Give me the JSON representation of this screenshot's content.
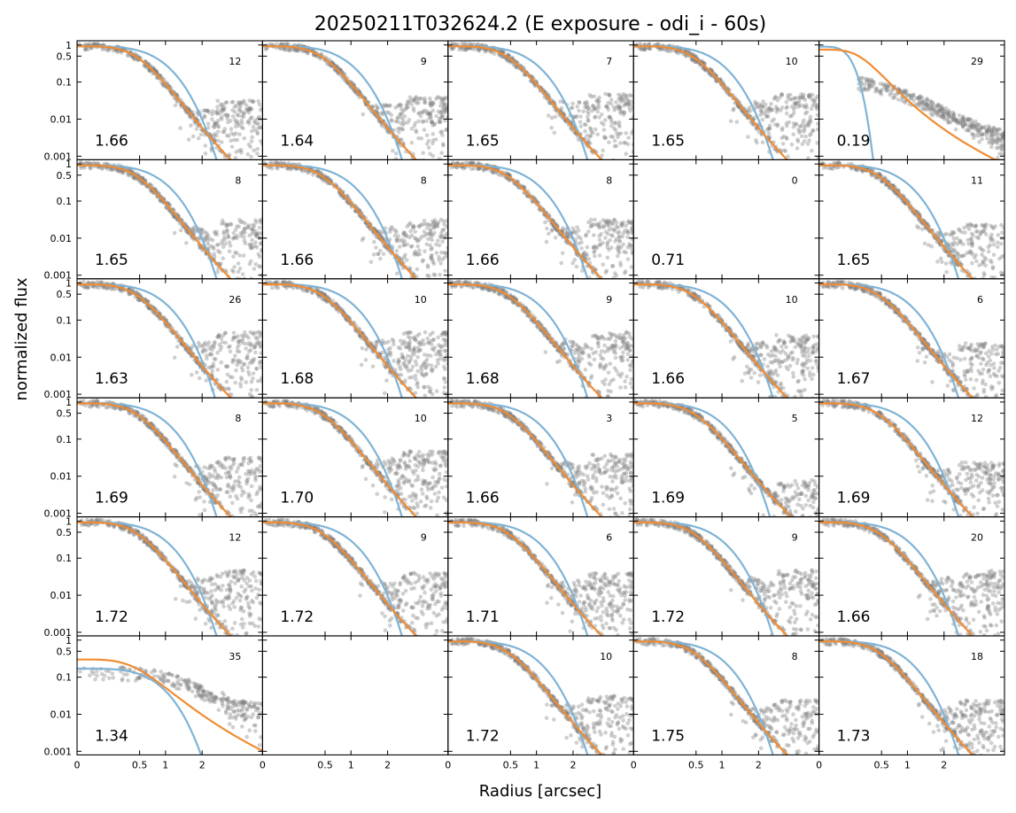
{
  "figure": {
    "title": "20250211T032624.2 (E exposure - odi_i - 60s)",
    "xlabel": "Radius [arcsec]",
    "ylabel": "normalized flux"
  },
  "chart_data": {
    "type": "scatter",
    "layout": "6 rows x 5 columns grid of panels",
    "title": "20250211T032624.2 (E exposure - odi_i - 60s)",
    "xlabel": "Radius [arcsec]",
    "ylabel": "normalized flux",
    "x_scale": "sqrt",
    "x_ticks": [
      0,
      0.5,
      1,
      2
    ],
    "x_tick_labels": [
      "0",
      "0.5",
      "1",
      "2"
    ],
    "xlim": [
      0,
      4.4
    ],
    "y_scale": "log",
    "y_ticks": [
      1,
      0.5,
      0.1,
      0.01,
      0.001
    ],
    "y_tick_labels": [
      "1",
      "0.5",
      "0.1",
      "0.01",
      "0.001"
    ],
    "ylim": [
      0.0008,
      1.3
    ],
    "colors": {
      "points": "#808080",
      "gaussian_fit": "#7fb3d5",
      "moffat_fit": "#f08c33"
    },
    "panels": [
      {
        "fwhm": "1.66",
        "count": "12",
        "scatter_kind": "normal",
        "gauss_scale": 0.92,
        "moffat_scale": 1.0,
        "floor": 0.02
      },
      {
        "fwhm": "1.64",
        "count": "9",
        "scatter_kind": "normal",
        "gauss_scale": 0.92,
        "moffat_scale": 1.0,
        "floor": 0.025
      },
      {
        "fwhm": "1.65",
        "count": "7",
        "scatter_kind": "normal",
        "gauss_scale": 0.92,
        "moffat_scale": 1.0,
        "floor": 0.03
      },
      {
        "fwhm": "1.65",
        "count": "10",
        "scatter_kind": "normal",
        "gauss_scale": 0.92,
        "moffat_scale": 1.0,
        "floor": 0.03
      },
      {
        "fwhm": "0.19",
        "count": "29",
        "scatter_kind": "bad",
        "gauss_scale": 1.0,
        "moffat_scale": 1.0,
        "floor": 0.01
      },
      {
        "fwhm": "1.65",
        "count": "8",
        "scatter_kind": "normal",
        "gauss_scale": 0.92,
        "moffat_scale": 1.0,
        "floor": 0.02
      },
      {
        "fwhm": "1.66",
        "count": "8",
        "scatter_kind": "normal",
        "gauss_scale": 0.92,
        "moffat_scale": 1.0,
        "floor": 0.02
      },
      {
        "fwhm": "1.66",
        "count": "8",
        "scatter_kind": "normal",
        "gauss_scale": 0.92,
        "moffat_scale": 1.0,
        "floor": 0.02
      },
      {
        "fwhm": "0.71",
        "count": "0",
        "scatter_kind": "empty",
        "gauss_scale": 1.0,
        "moffat_scale": 1.0,
        "floor": 0.0
      },
      {
        "fwhm": "1.65",
        "count": "11",
        "scatter_kind": "normal",
        "gauss_scale": 0.92,
        "moffat_scale": 1.0,
        "floor": 0.015
      },
      {
        "fwhm": "1.63",
        "count": "26",
        "scatter_kind": "normal",
        "gauss_scale": 0.9,
        "moffat_scale": 1.0,
        "floor": 0.03
      },
      {
        "fwhm": "1.68",
        "count": "10",
        "scatter_kind": "normal",
        "gauss_scale": 0.92,
        "moffat_scale": 1.0,
        "floor": 0.03
      },
      {
        "fwhm": "1.68",
        "count": "9",
        "scatter_kind": "normal",
        "gauss_scale": 0.92,
        "moffat_scale": 1.0,
        "floor": 0.03
      },
      {
        "fwhm": "1.66",
        "count": "10",
        "scatter_kind": "normal",
        "gauss_scale": 0.92,
        "moffat_scale": 1.0,
        "floor": 0.025
      },
      {
        "fwhm": "1.67",
        "count": "6",
        "scatter_kind": "normal",
        "gauss_scale": 0.92,
        "moffat_scale": 1.0,
        "floor": 0.015
      },
      {
        "fwhm": "1.69",
        "count": "8",
        "scatter_kind": "normal",
        "gauss_scale": 0.92,
        "moffat_scale": 1.0,
        "floor": 0.02
      },
      {
        "fwhm": "1.70",
        "count": "10",
        "scatter_kind": "normal",
        "gauss_scale": 0.92,
        "moffat_scale": 1.0,
        "floor": 0.03
      },
      {
        "fwhm": "1.66",
        "count": "3",
        "scatter_kind": "normal",
        "gauss_scale": 0.92,
        "moffat_scale": 1.0,
        "floor": 0.025
      },
      {
        "fwhm": "1.69",
        "count": "5",
        "scatter_kind": "normal",
        "gauss_scale": 0.88,
        "moffat_scale": 1.05,
        "floor": 0.005
      },
      {
        "fwhm": "1.69",
        "count": "12",
        "scatter_kind": "normal",
        "gauss_scale": 0.92,
        "moffat_scale": 1.0,
        "floor": 0.015
      },
      {
        "fwhm": "1.72",
        "count": "12",
        "scatter_kind": "normal",
        "gauss_scale": 0.92,
        "moffat_scale": 1.0,
        "floor": 0.03
      },
      {
        "fwhm": "1.72",
        "count": "9",
        "scatter_kind": "normal",
        "gauss_scale": 0.92,
        "moffat_scale": 1.0,
        "floor": 0.025
      },
      {
        "fwhm": "1.71",
        "count": "6",
        "scatter_kind": "normal",
        "gauss_scale": 0.92,
        "moffat_scale": 1.0,
        "floor": 0.025
      },
      {
        "fwhm": "1.72",
        "count": "9",
        "scatter_kind": "normal",
        "gauss_scale": 0.92,
        "moffat_scale": 1.0,
        "floor": 0.03
      },
      {
        "fwhm": "1.66",
        "count": "20",
        "scatter_kind": "normal",
        "gauss_scale": 0.92,
        "moffat_scale": 1.0,
        "floor": 0.03
      },
      {
        "fwhm": "1.34",
        "count": "35",
        "scatter_kind": "faint",
        "gauss_scale": 1.0,
        "moffat_scale": 1.0,
        "floor": 0.02
      },
      {
        "fwhm": "",
        "count": "",
        "scatter_kind": "none",
        "gauss_scale": 1.0,
        "moffat_scale": 1.0,
        "floor": 0.0
      },
      {
        "fwhm": "1.72",
        "count": "10",
        "scatter_kind": "normal",
        "gauss_scale": 0.92,
        "moffat_scale": 1.0,
        "floor": 0.02
      },
      {
        "fwhm": "1.75",
        "count": "8",
        "scatter_kind": "normal",
        "gauss_scale": 0.92,
        "moffat_scale": 1.0,
        "floor": 0.015
      },
      {
        "fwhm": "1.73",
        "count": "18",
        "scatter_kind": "normal",
        "gauss_scale": 0.92,
        "moffat_scale": 1.0,
        "floor": 0.015
      }
    ]
  }
}
